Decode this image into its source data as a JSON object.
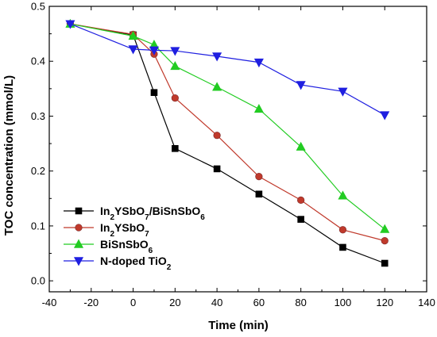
{
  "chart_data": {
    "type": "line",
    "title": "",
    "xlabel": "Time (min)",
    "ylabel": "TOC concentration (mmol/L)",
    "xlim": [
      -40,
      140
    ],
    "ylim": [
      -0.02,
      0.5
    ],
    "xticks": [
      -40,
      -20,
      0,
      20,
      40,
      60,
      80,
      100,
      120,
      140
    ],
    "yticks": [
      0.0,
      0.1,
      0.2,
      0.3,
      0.4,
      0.5
    ],
    "xtick_labels": [
      "-40",
      "-20",
      "0",
      "20",
      "40",
      "60",
      "80",
      "100",
      "120",
      "140"
    ],
    "ytick_labels": [
      "0.0",
      "0.1",
      "0.2",
      "0.3",
      "0.4",
      "0.5"
    ],
    "grid": false,
    "legend_position": "bottom-left",
    "series": [
      {
        "name": "In2YSbO7/BiSnSbO6",
        "legend": {
          "main": "In",
          "parts": [
            {
              "t": "In",
              "s": false
            },
            {
              "t": "2",
              "s": true
            },
            {
              "t": "YSbO",
              "s": false
            },
            {
              "t": "7",
              "s": true
            },
            {
              "t": "/BiSnSbO",
              "s": false
            },
            {
              "t": "6",
              "s": true
            }
          ]
        },
        "color": "#000000",
        "marker": "square",
        "x": [
          -30,
          0,
          10,
          20,
          40,
          60,
          80,
          100,
          120
        ],
        "y": [
          0.468,
          0.448,
          0.343,
          0.241,
          0.204,
          0.158,
          0.112,
          0.061,
          0.032
        ]
      },
      {
        "name": "In2YSbO7",
        "legend": {
          "parts": [
            {
              "t": "In",
              "s": false
            },
            {
              "t": "2",
              "s": true
            },
            {
              "t": "YSbO",
              "s": false
            },
            {
              "t": "7",
              "s": true
            }
          ]
        },
        "color": "#c0392b",
        "marker": "circle",
        "x": [
          -30,
          0,
          10,
          20,
          40,
          60,
          80,
          100,
          120
        ],
        "y": [
          0.468,
          0.449,
          0.413,
          0.333,
          0.265,
          0.19,
          0.147,
          0.093,
          0.073
        ]
      },
      {
        "name": "BiSnSbO6",
        "legend": {
          "parts": [
            {
              "t": "BiSnSbO",
              "s": false
            },
            {
              "t": "6",
              "s": true
            }
          ]
        },
        "color": "#22cc22",
        "marker": "triangle-up",
        "x": [
          -30,
          0,
          10,
          20,
          40,
          60,
          80,
          100,
          120
        ],
        "y": [
          0.468,
          0.446,
          0.43,
          0.391,
          0.353,
          0.313,
          0.244,
          0.155,
          0.094
        ]
      },
      {
        "name": "N-doped TiO2",
        "legend": {
          "parts": [
            {
              "t": "N-doped TiO",
              "s": false
            },
            {
              "t": "2",
              "s": true
            }
          ]
        },
        "color": "#1f1fe0",
        "marker": "triangle-down",
        "x": [
          -30,
          0,
          10,
          20,
          40,
          60,
          80,
          100,
          120
        ],
        "y": [
          0.468,
          0.422,
          0.42,
          0.419,
          0.409,
          0.398,
          0.357,
          0.345,
          0.302
        ]
      }
    ]
  }
}
